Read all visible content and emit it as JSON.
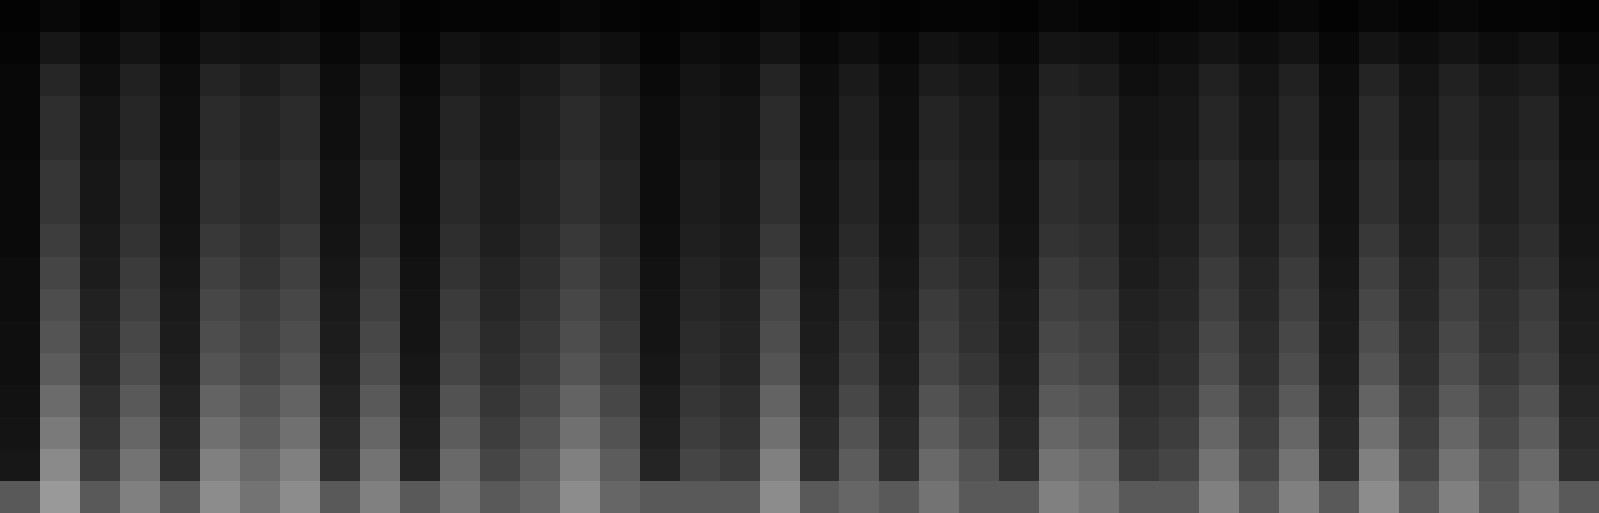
{
  "chart_data": {
    "type": "heatmap",
    "tick_labels": false,
    "color": "#ffffff",
    "color_range": [
      0,
      100
    ],
    "cells": [
      [
        1,
        3,
        1,
        3,
        1,
        3,
        2,
        3,
        1,
        3,
        1,
        2,
        2,
        2,
        3,
        2,
        1,
        2,
        1,
        3,
        1,
        2,
        1,
        2,
        2,
        1,
        3,
        2,
        1,
        2,
        3,
        2,
        3,
        1,
        3,
        2,
        3,
        2,
        2,
        1
      ],
      [
        2,
        9,
        4,
        8,
        3,
        8,
        7,
        8,
        3,
        8,
        2,
        7,
        5,
        6,
        8,
        6,
        2,
        5,
        4,
        8,
        3,
        6,
        3,
        7,
        5,
        3,
        8,
        7,
        4,
        5,
        8,
        5,
        8,
        3,
        8,
        5,
        8,
        5,
        7,
        3
      ],
      [
        3,
        15,
        6,
        13,
        5,
        14,
        11,
        14,
        5,
        13,
        4,
        11,
        8,
        10,
        14,
        10,
        4,
        8,
        6,
        14,
        5,
        10,
        5,
        11,
        9,
        5,
        13,
        11,
        6,
        8,
        13,
        8,
        13,
        5,
        14,
        8,
        13,
        9,
        11,
        5
      ],
      [
        3,
        18,
        8,
        15,
        6,
        17,
        14,
        17,
        6,
        15,
        5,
        14,
        9,
        12,
        17,
        12,
        5,
        9,
        8,
        17,
        6,
        12,
        6,
        14,
        11,
        6,
        15,
        14,
        8,
        9,
        15,
        9,
        15,
        6,
        17,
        9,
        15,
        11,
        14,
        6
      ],
      [
        3,
        18,
        8,
        15,
        6,
        17,
        14,
        17,
        6,
        15,
        5,
        14,
        9,
        12,
        17,
        12,
        5,
        9,
        8,
        17,
        6,
        12,
        6,
        14,
        11,
        6,
        15,
        14,
        8,
        9,
        15,
        9,
        15,
        6,
        17,
        9,
        15,
        11,
        14,
        6
      ],
      [
        4,
        21,
        9,
        18,
        7,
        19,
        16,
        19,
        7,
        18,
        5,
        16,
        11,
        14,
        19,
        14,
        5,
        11,
        9,
        19,
        7,
        14,
        7,
        16,
        12,
        7,
        18,
        16,
        9,
        11,
        18,
        11,
        18,
        7,
        19,
        11,
        18,
        12,
        16,
        7
      ],
      [
        4,
        21,
        9,
        18,
        7,
        19,
        16,
        19,
        7,
        18,
        5,
        16,
        11,
        14,
        19,
        14,
        5,
        11,
        9,
        19,
        7,
        14,
        7,
        16,
        12,
        7,
        18,
        16,
        9,
        11,
        18,
        11,
        18,
        7,
        19,
        11,
        18,
        12,
        16,
        7
      ],
      [
        4,
        24,
        10,
        20,
        8,
        22,
        18,
        22,
        8,
        20,
        6,
        18,
        12,
        16,
        22,
        16,
        6,
        12,
        10,
        22,
        8,
        16,
        8,
        18,
        14,
        8,
        20,
        18,
        10,
        12,
        20,
        12,
        20,
        8,
        22,
        12,
        20,
        14,
        18,
        8
      ],
      [
        5,
        27,
        11,
        23,
        9,
        25,
        20,
        25,
        9,
        23,
        7,
        20,
        14,
        18,
        25,
        18,
        7,
        14,
        11,
        25,
        9,
        18,
        9,
        20,
        16,
        9,
        23,
        20,
        11,
        14,
        23,
        14,
        23,
        9,
        25,
        14,
        23,
        16,
        20,
        9
      ],
      [
        5,
        30,
        13,
        25,
        10,
        28,
        23,
        28,
        10,
        25,
        8,
        23,
        15,
        20,
        28,
        20,
        8,
        15,
        13,
        28,
        10,
        20,
        10,
        23,
        18,
        10,
        25,
        23,
        13,
        15,
        25,
        15,
        25,
        10,
        28,
        15,
        25,
        18,
        23,
        10
      ],
      [
        6,
        33,
        14,
        28,
        11,
        30,
        25,
        30,
        11,
        28,
        8,
        25,
        17,
        22,
        30,
        22,
        8,
        17,
        14,
        30,
        11,
        22,
        11,
        25,
        19,
        11,
        28,
        25,
        14,
        17,
        28,
        17,
        28,
        11,
        30,
        17,
        28,
        19,
        25,
        11
      ],
      [
        6,
        36,
        15,
        30,
        12,
        33,
        27,
        33,
        12,
        30,
        9,
        27,
        18,
        24,
        33,
        24,
        9,
        18,
        15,
        33,
        12,
        24,
        12,
        27,
        21,
        12,
        30,
        27,
        15,
        18,
        30,
        18,
        30,
        12,
        33,
        18,
        30,
        21,
        27,
        12
      ],
      [
        7,
        42,
        18,
        35,
        14,
        39,
        32,
        39,
        14,
        35,
        11,
        32,
        21,
        28,
        39,
        28,
        11,
        21,
        18,
        39,
        14,
        28,
        14,
        32,
        25,
        14,
        35,
        32,
        18,
        21,
        35,
        21,
        35,
        14,
        39,
        21,
        35,
        25,
        32,
        14
      ],
      [
        8,
        48,
        20,
        40,
        16,
        44,
        36,
        44,
        16,
        40,
        12,
        36,
        24,
        32,
        44,
        32,
        12,
        24,
        20,
        44,
        16,
        32,
        16,
        36,
        28,
        16,
        40,
        36,
        20,
        24,
        40,
        24,
        40,
        16,
        44,
        24,
        40,
        28,
        36,
        16
      ],
      [
        9,
        54,
        23,
        45,
        18,
        50,
        41,
        50,
        18,
        45,
        14,
        41,
        27,
        36,
        50,
        36,
        14,
        27,
        23,
        50,
        18,
        36,
        18,
        41,
        32,
        18,
        45,
        41,
        23,
        27,
        45,
        27,
        45,
        18,
        50,
        27,
        45,
        32,
        41,
        18
      ],
      [
        35,
        60,
        35,
        50,
        35,
        55,
        45,
        55,
        35,
        50,
        35,
        45,
        35,
        40,
        55,
        40,
        35,
        35,
        35,
        55,
        35,
        40,
        35,
        45,
        35,
        35,
        50,
        45,
        35,
        35,
        50,
        35,
        50,
        35,
        55,
        35,
        50,
        35,
        45,
        35
      ]
    ]
  }
}
